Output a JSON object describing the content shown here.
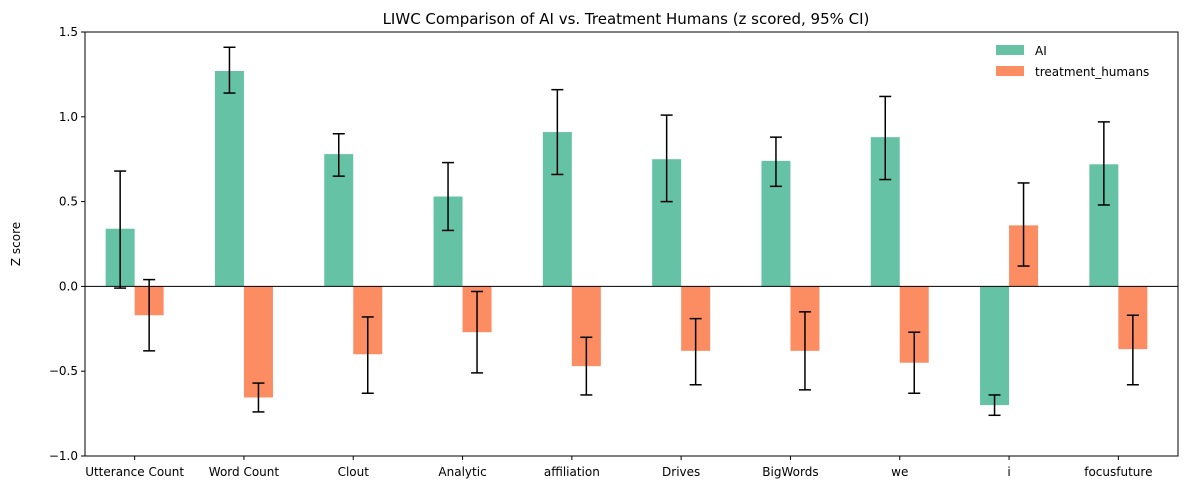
{
  "chart_data": {
    "type": "bar",
    "title": "LIWC Comparison of AI vs. Treatment Humans (z scored, 95% CI)",
    "xlabel": "",
    "ylabel": "Z score",
    "ylim": [
      -1.0,
      1.5
    ],
    "yticks": [
      -1.0,
      -0.5,
      0.0,
      0.5,
      1.0,
      1.5
    ],
    "ytick_labels": [
      "−1.0",
      "−0.5",
      "0.0",
      "0.5",
      "1.0",
      "1.5"
    ],
    "grid": false,
    "legend_position": "top-right",
    "categories": [
      "Utterance Count",
      "Word Count",
      "Clout",
      "Analytic",
      "affiliation",
      "Drives",
      "BigWords",
      "we",
      "i",
      "focusfuture"
    ],
    "series": [
      {
        "name": "AI",
        "color": "#66c2a5",
        "values": [
          0.34,
          1.27,
          0.78,
          0.53,
          0.91,
          0.75,
          0.74,
          0.88,
          -0.7,
          0.72
        ],
        "ci_low": [
          -0.01,
          1.14,
          0.65,
          0.33,
          0.66,
          0.5,
          0.59,
          0.63,
          -0.76,
          0.48
        ],
        "ci_high": [
          0.68,
          1.41,
          0.9,
          0.73,
          1.16,
          1.01,
          0.88,
          1.12,
          -0.64,
          0.97
        ]
      },
      {
        "name": "treatment_humans",
        "color": "#fc8d62",
        "values": [
          -0.17,
          -0.655,
          -0.4,
          -0.27,
          -0.47,
          -0.38,
          -0.38,
          -0.45,
          0.36,
          -0.37
        ],
        "ci_low": [
          -0.38,
          -0.74,
          -0.63,
          -0.51,
          -0.64,
          -0.58,
          -0.61,
          -0.63,
          0.12,
          -0.58
        ],
        "ci_high": [
          0.04,
          -0.57,
          -0.18,
          -0.03,
          -0.3,
          -0.19,
          -0.15,
          -0.27,
          0.61,
          -0.17
        ]
      }
    ]
  }
}
